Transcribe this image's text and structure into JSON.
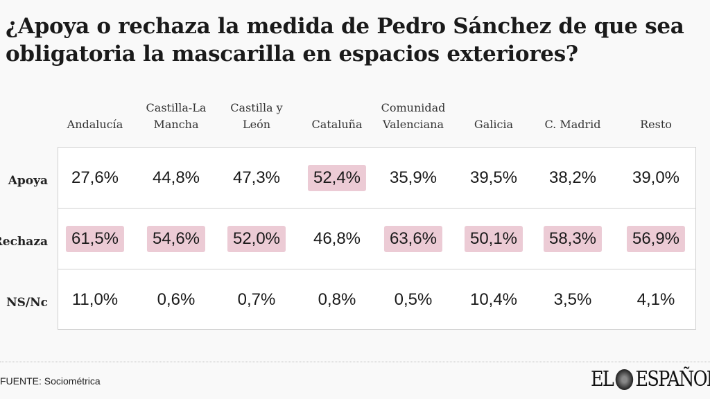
{
  "title": "¿Apoya o rechaza la medida de Pedro Sánchez de que sea obligatoria la mascarilla en espacios exteriores?",
  "highlight_color": "#eccbd5",
  "chart_data": {
    "type": "table",
    "columns": [
      "Andalucía",
      "Castilla-La Mancha",
      "Castilla y León",
      "Cataluña",
      "Comunidad Valenciana",
      "Galicia",
      "C. Madrid",
      "Resto"
    ],
    "rows": [
      {
        "label": "Apoya",
        "values": [
          "27,6%",
          "44,8%",
          "47,3%",
          "52,4%",
          "35,9%",
          "39,5%",
          "38,2%",
          "39,0%"
        ],
        "highlighted": [
          false,
          false,
          false,
          true,
          false,
          false,
          false,
          false
        ]
      },
      {
        "label": "Rechaza",
        "values": [
          "61,5%",
          "54,6%",
          "52,0%",
          "46,8%",
          "63,6%",
          "50,1%",
          "58,3%",
          "56,9%"
        ],
        "highlighted": [
          true,
          true,
          true,
          false,
          true,
          true,
          true,
          true
        ]
      },
      {
        "label": "NS/Nc",
        "values": [
          "11,0%",
          "0,6%",
          "0,7%",
          "0,8%",
          "0,5%",
          "10,4%",
          "3,5%",
          "4,1%"
        ],
        "highlighted": [
          false,
          false,
          false,
          false,
          false,
          false,
          false,
          false
        ]
      }
    ]
  },
  "source": "FUENTE: Sociométrica",
  "logo": "EL ESPAÑOL"
}
